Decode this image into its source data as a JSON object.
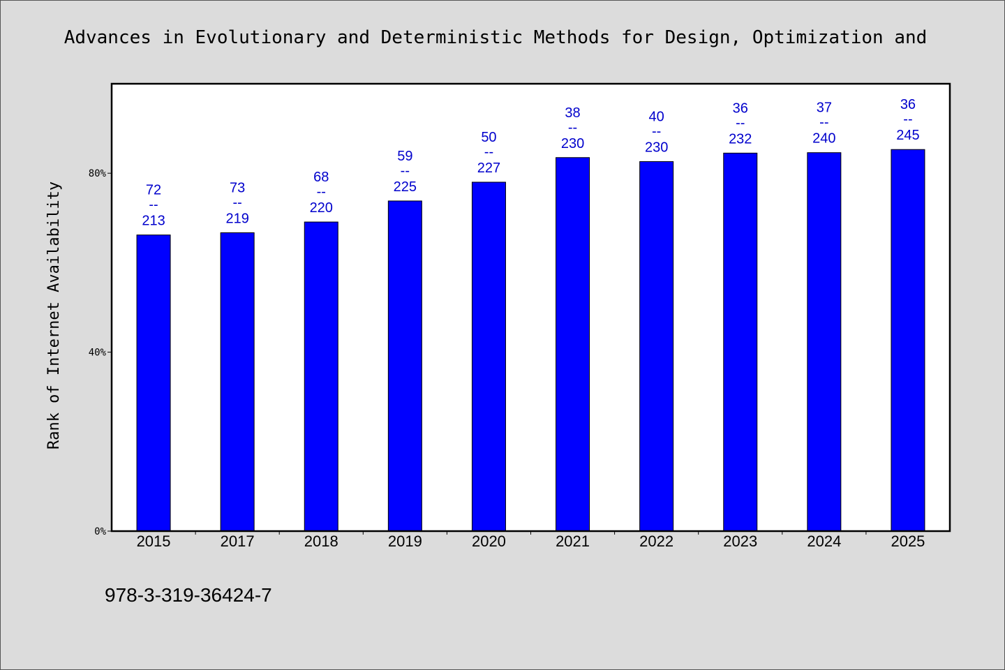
{
  "title": "Advances in Evolutionary and Deterministic Methods for Design, Optimization and",
  "footer": "978-3-319-36424-7",
  "colors": {
    "background": "#dcdcdc",
    "plot_background": "#ffffff",
    "bar_fill": "#0000ff",
    "label_color": "#0000cc"
  },
  "chart_data": {
    "type": "bar",
    "title": "Advances in Evolutionary and Deterministic Methods for Design, Optimization and",
    "xlabel": "",
    "ylabel": "Rank of Internet Availability",
    "categories": [
      "2015",
      "2017",
      "2018",
      "2019",
      "2020",
      "2021",
      "2022",
      "2023",
      "2024",
      "2025"
    ],
    "values": [
      0.662,
      0.667,
      0.691,
      0.738,
      0.78,
      0.835,
      0.826,
      0.845,
      0.846,
      0.853
    ],
    "labels": [
      {
        "rank": "72",
        "total": "213"
      },
      {
        "rank": "73",
        "total": "219"
      },
      {
        "rank": "68",
        "total": "220"
      },
      {
        "rank": "59",
        "total": "225"
      },
      {
        "rank": "50",
        "total": "227"
      },
      {
        "rank": "38",
        "total": "230"
      },
      {
        "rank": "40",
        "total": "230"
      },
      {
        "rank": "36",
        "total": "232"
      },
      {
        "rank": "37",
        "total": "240"
      },
      {
        "rank": "36",
        "total": "245"
      }
    ],
    "label_separator": "--",
    "ylim": [
      0,
      1.0
    ],
    "yticks": [
      0,
      0.4,
      0.8
    ],
    "ytick_labels": [
      "0%",
      "40%",
      "80%"
    ],
    "grid": false,
    "legend": "none"
  }
}
